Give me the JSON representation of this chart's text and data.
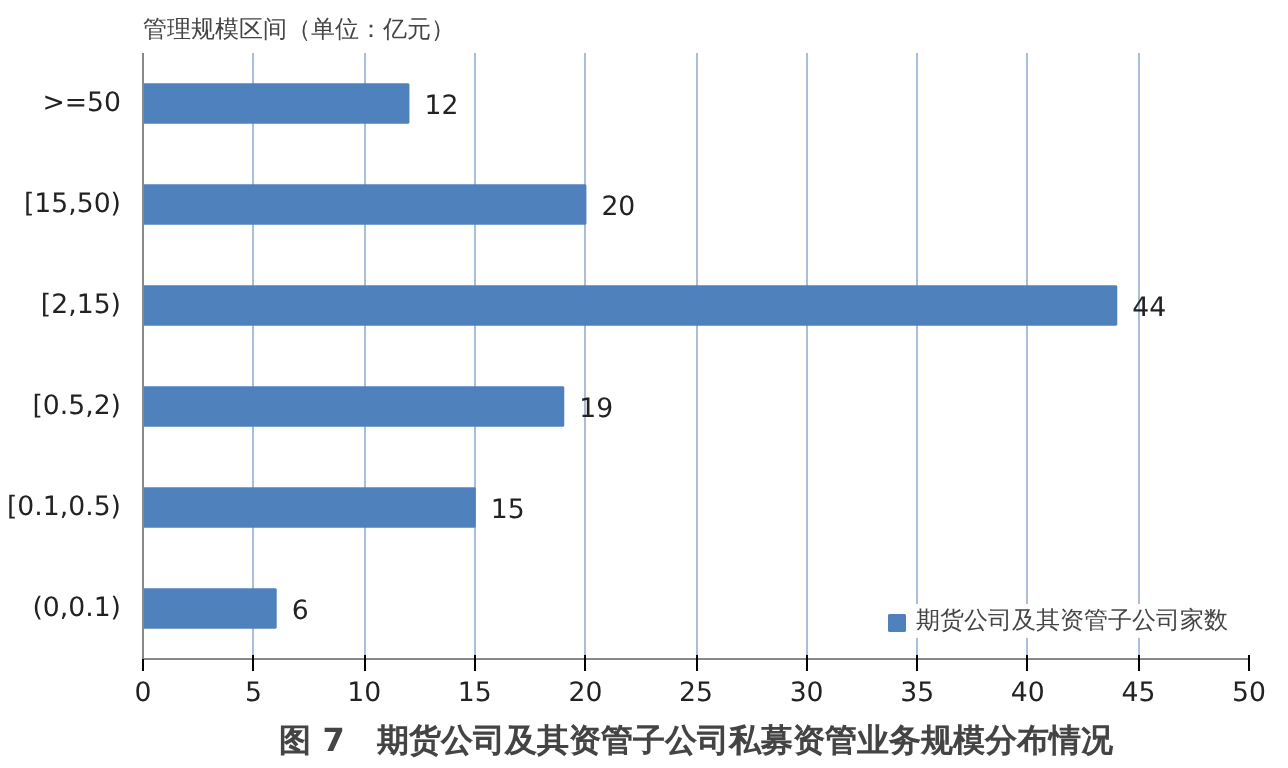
{
  "chart_data": {
    "type": "bar",
    "orientation": "horizontal",
    "title": "图 7　期货公司及其资管子公司私募资管业务规模分布情况",
    "ylabel": "管理规模区间（单位：亿元）",
    "categories": [
      ">=50",
      "[15,50)",
      "[2,15)",
      "[0.5,2)",
      "[0.1,0.5)",
      "(0,0.1)"
    ],
    "series": [
      {
        "name": "期货公司及其资管子公司家数",
        "color": "#4f81bd",
        "values": [
          12,
          20,
          44,
          19,
          15,
          6
        ]
      }
    ],
    "xlim": [
      0,
      50
    ],
    "xticks": [
      0,
      5,
      10,
      15,
      20,
      25,
      30,
      35,
      40,
      45,
      50
    ],
    "grid": "x",
    "legend": "bottom right",
    "data_labels": true
  }
}
